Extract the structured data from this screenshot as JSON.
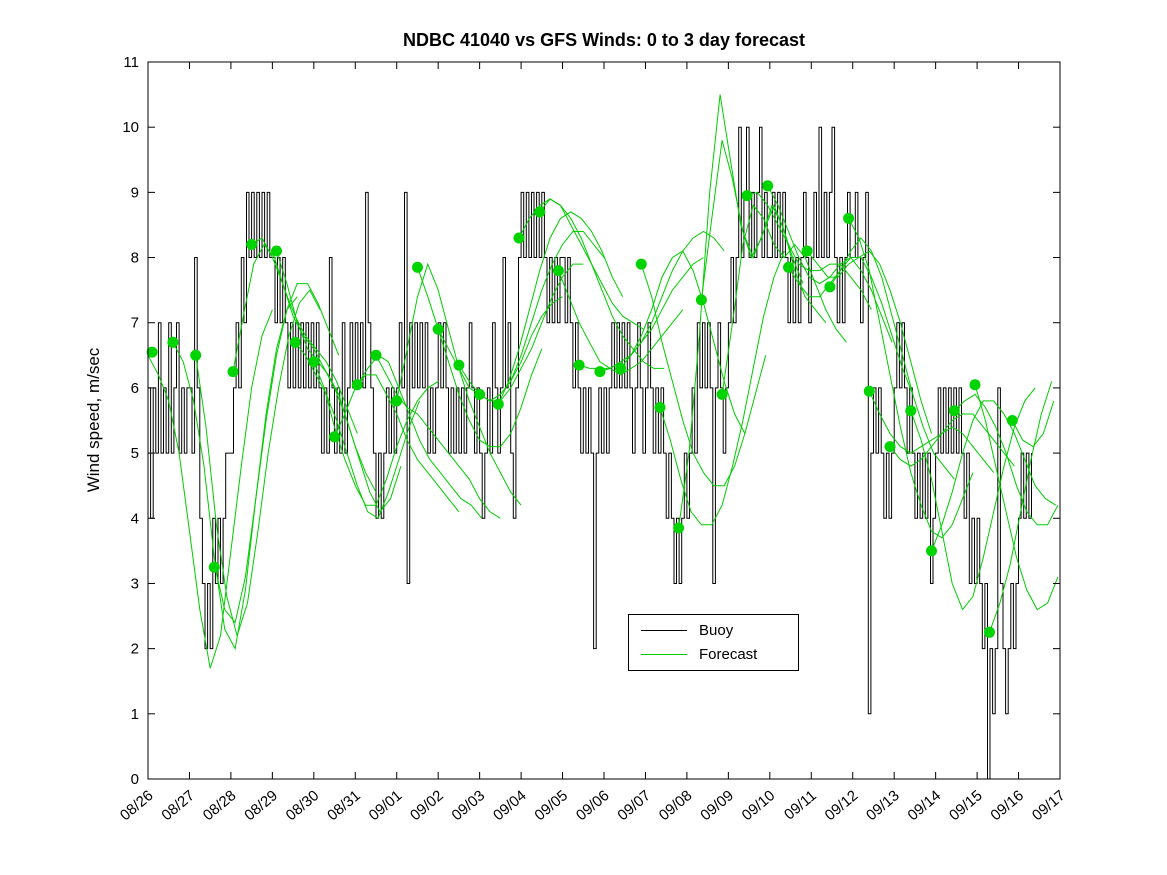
{
  "chart_data": {
    "type": "line",
    "title": "NDBC 41040 vs GFS Winds: 0 to 3 day forecast",
    "ylabel": "Wind speed, m/sec",
    "xlabel": "",
    "ylim": [
      0,
      11
    ],
    "xlim_days": [
      0,
      22
    ],
    "grid": false,
    "legend_position": "inside-bottom-center",
    "xtick_labels": [
      "08/26",
      "08/27",
      "08/28",
      "08/29",
      "08/30",
      "08/31",
      "09/01",
      "09/02",
      "09/03",
      "09/04",
      "09/05",
      "09/06",
      "09/07",
      "09/08",
      "09/09",
      "09/10",
      "09/11",
      "09/12",
      "09/13",
      "09/14",
      "09/15",
      "09/16",
      "09/17"
    ],
    "ytick_labels": [
      "0",
      "1",
      "2",
      "3",
      "4",
      "5",
      "6",
      "7",
      "8",
      "9",
      "10",
      "11"
    ],
    "buoy": {
      "name": "Buoy",
      "t0": 0,
      "dt_days": 0.0625,
      "values": [
        6,
        4,
        6,
        5,
        7,
        5,
        6,
        5,
        7,
        5,
        6,
        7,
        5,
        6,
        5,
        6,
        6,
        5,
        8,
        6,
        4,
        3,
        2,
        3,
        2,
        4,
        3,
        4,
        3,
        4,
        5,
        5,
        5,
        6,
        7,
        6,
        8,
        7,
        9,
        8,
        9,
        8,
        9,
        8,
        9,
        8,
        9,
        8,
        8,
        7,
        8,
        7,
        8,
        7,
        6,
        7,
        6,
        7,
        6,
        7,
        6,
        7,
        6,
        7,
        6,
        7,
        6,
        5,
        6,
        5,
        8,
        6,
        5,
        6,
        5,
        7,
        5,
        6,
        7,
        6,
        7,
        6,
        7,
        6,
        9,
        7,
        6,
        5,
        4,
        5,
        4,
        5,
        6,
        5,
        6,
        5,
        6,
        7,
        6,
        9,
        3,
        7,
        6,
        7,
        6,
        7,
        6,
        7,
        5,
        6,
        5,
        6,
        7,
        6,
        7,
        6,
        5,
        6,
        5,
        6,
        5,
        6,
        5,
        6,
        7,
        6,
        5,
        6,
        5,
        4,
        5,
        6,
        5,
        7,
        6,
        5,
        6,
        8,
        6,
        7,
        5,
        4,
        6,
        8,
        9,
        8,
        9,
        8,
        9,
        8,
        9,
        8,
        9,
        8,
        7,
        8,
        7,
        8,
        7,
        8,
        8,
        7,
        8,
        7,
        6,
        7,
        6,
        5,
        6,
        5,
        6,
        5,
        2,
        5,
        6,
        5,
        6,
        5,
        6,
        7,
        6,
        7,
        6,
        7,
        6,
        7,
        6,
        5,
        6,
        7,
        6,
        5,
        6,
        7,
        6,
        5,
        6,
        5,
        6,
        5,
        4,
        5,
        4,
        3,
        4,
        3,
        4,
        5,
        4,
        5,
        6,
        5,
        7,
        6,
        7,
        6,
        7,
        6,
        3,
        6,
        7,
        6,
        5,
        6,
        7,
        8,
        7,
        8,
        10,
        8,
        9,
        10,
        8,
        9,
        8,
        9,
        10,
        8,
        9,
        8,
        8,
        9,
        8,
        9,
        8,
        9,
        8,
        7,
        8,
        7,
        8,
        7,
        8,
        9,
        8,
        7,
        8,
        9,
        8,
        10,
        8,
        9,
        8,
        9,
        10,
        8,
        7,
        8,
        7,
        8,
        9,
        8,
        8,
        9,
        8,
        7,
        8,
        9,
        1,
        5,
        6,
        5,
        6,
        5,
        4,
        5,
        4,
        5,
        6,
        7,
        6,
        7,
        6,
        5,
        6,
        5,
        4,
        5,
        4,
        5,
        4,
        5,
        3,
        4,
        5,
        6,
        5,
        6,
        5,
        6,
        5,
        6,
        5,
        6,
        5,
        4,
        5,
        3,
        4,
        3,
        4,
        3,
        2,
        3,
        0,
        2,
        1,
        2,
        6,
        3,
        2,
        1,
        2,
        3,
        2,
        3,
        4,
        5,
        4,
        5,
        4,
        5
      ]
    },
    "forecast": {
      "name": "Forecast",
      "dt_days": 0.25,
      "lines": [
        {
          "t0": 0.0,
          "v": [
            6.5,
            6.2,
            5.8,
            5.0,
            3.8,
            2.6,
            1.7,
            2.2,
            3.5,
            4.8,
            6.0,
            6.8,
            7.2
          ]
        },
        {
          "t0": 0.6,
          "v": [
            6.7,
            6.4,
            5.8,
            4.8,
            3.4,
            2.3,
            2.0,
            2.9,
            4.3,
            5.6,
            6.6,
            7.2,
            7.4
          ]
        },
        {
          "t0": 1.15,
          "v": [
            6.5,
            5.4,
            3.9,
            2.8,
            2.2,
            2.7,
            3.8,
            5.0,
            6.0,
            6.8,
            7.3,
            7.5,
            7.2
          ]
        },
        {
          "t0": 1.6,
          "v": [
            3.3,
            2.6,
            2.4,
            3.1,
            4.3,
            5.5,
            6.5,
            7.2,
            7.6,
            7.6,
            7.3,
            6.9,
            6.5
          ]
        },
        {
          "t0": 2.05,
          "v": [
            6.25,
            7.1,
            7.9,
            8.2,
            8.0,
            7.5,
            7.1,
            6.8,
            6.6,
            6.4,
            6.1,
            5.7,
            5.3
          ]
        },
        {
          "t0": 2.5,
          "v": [
            8.2,
            8.3,
            8.0,
            7.6,
            7.1,
            6.8,
            6.6,
            6.3,
            6.0,
            5.6,
            5.1,
            4.7,
            4.4
          ]
        },
        {
          "t0": 3.1,
          "v": [
            8.1,
            7.6,
            7.0,
            6.6,
            6.4,
            6.2,
            5.9,
            5.4,
            4.9,
            4.4,
            4.1,
            4.3,
            4.8
          ]
        },
        {
          "t0": 3.55,
          "v": [
            6.7,
            6.5,
            6.2,
            5.9,
            5.5,
            5.0,
            4.5,
            4.1,
            4.0,
            4.4,
            4.9,
            5.4,
            5.8
          ]
        },
        {
          "t0": 4.0,
          "v": [
            6.4,
            6.0,
            5.4,
            4.9,
            4.5,
            4.2,
            4.2,
            4.6,
            5.1,
            5.5,
            5.8,
            6.0,
            6.1
          ]
        },
        {
          "t0": 4.5,
          "v": [
            5.25,
            5.6,
            6.0,
            6.2,
            6.2,
            5.9,
            5.6,
            5.2,
            4.9,
            4.7,
            4.5,
            4.3,
            4.1
          ]
        },
        {
          "t0": 5.05,
          "v": [
            6.05,
            6.3,
            6.5,
            6.4,
            6.0,
            5.6,
            5.2,
            4.9,
            4.7,
            4.5,
            4.3,
            4.2,
            4.0
          ]
        },
        {
          "t0": 5.5,
          "v": [
            6.5,
            6.2,
            5.9,
            5.7,
            5.6,
            5.4,
            5.2,
            5.0,
            4.8,
            4.6,
            4.3,
            4.1,
            4.0
          ]
        },
        {
          "t0": 6.0,
          "v": [
            5.8,
            6.6,
            7.4,
            7.9,
            7.5,
            6.9,
            6.3,
            5.8,
            5.4,
            5.0,
            4.7,
            4.4,
            4.2
          ]
        },
        {
          "t0": 6.5,
          "v": [
            7.85,
            7.4,
            6.9,
            6.4,
            5.9,
            5.5,
            5.2,
            5.1,
            5.1,
            5.3,
            5.7,
            6.2,
            6.6
          ]
        },
        {
          "t0": 7.0,
          "v": [
            6.9,
            6.6,
            6.3,
            6.0,
            5.9,
            5.8,
            5.9,
            6.1,
            6.4,
            6.8,
            7.1,
            7.3,
            7.4
          ]
        },
        {
          "t0": 7.5,
          "v": [
            6.35,
            6.1,
            5.9,
            5.8,
            5.8,
            6.0,
            6.3,
            6.6,
            7.0,
            7.4,
            7.7,
            7.9,
            7.9
          ]
        },
        {
          "t0": 8.0,
          "v": [
            5.9,
            5.8,
            5.9,
            6.1,
            6.5,
            7.0,
            7.5,
            7.9,
            8.2,
            8.4,
            8.4,
            8.2,
            8.0
          ]
        },
        {
          "t0": 8.45,
          "v": [
            5.75,
            6.1,
            6.6,
            7.2,
            7.8,
            8.3,
            8.6,
            8.7,
            8.6,
            8.4,
            8.1,
            7.7,
            7.4
          ]
        },
        {
          "t0": 8.95,
          "v": [
            8.3,
            8.6,
            8.8,
            8.9,
            8.8,
            8.5,
            8.2,
            7.9,
            7.6,
            7.3,
            7.1,
            7.0,
            6.9
          ]
        },
        {
          "t0": 9.45,
          "v": [
            8.7,
            8.9,
            8.8,
            8.6,
            8.3,
            7.9,
            7.5,
            7.1,
            6.8,
            6.6,
            6.4,
            6.3,
            6.3
          ]
        },
        {
          "t0": 9.9,
          "v": [
            7.8,
            7.4,
            7.0,
            6.7,
            6.4,
            6.3,
            6.2,
            6.3,
            6.4,
            6.6,
            6.8,
            7.0,
            7.2
          ]
        },
        {
          "t0": 10.4,
          "v": [
            6.35,
            6.3,
            6.3,
            6.3,
            6.4,
            6.5,
            6.7,
            6.9,
            7.2,
            7.5,
            7.7,
            7.9,
            8.0
          ]
        },
        {
          "t0": 10.9,
          "v": [
            6.25,
            6.3,
            6.4,
            6.5,
            6.7,
            7.0,
            7.4,
            7.8,
            8.1,
            8.3,
            8.4,
            8.3,
            8.1
          ]
        },
        {
          "t0": 11.4,
          "v": [
            6.3,
            6.5,
            6.8,
            7.2,
            7.7,
            8.0,
            8.1,
            7.8,
            7.3,
            6.7,
            6.1,
            5.6,
            5.3
          ]
        },
        {
          "t0": 11.9,
          "v": [
            7.9,
            7.4,
            6.7,
            6.1,
            5.5,
            5.0,
            4.7,
            4.5,
            4.5,
            4.8,
            5.3,
            5.9,
            6.5
          ]
        },
        {
          "t0": 12.35,
          "v": [
            5.7,
            5.2,
            4.6,
            4.1,
            3.9,
            3.9,
            4.2,
            4.8,
            5.5,
            6.3,
            7.1,
            7.7,
            8.1
          ]
        },
        {
          "t0": 12.8,
          "v": [
            3.85,
            5.0,
            6.8,
            9.0,
            10.5,
            9.5,
            8.5,
            8.0,
            8.3,
            8.8,
            8.5,
            8.0,
            7.6
          ]
        },
        {
          "t0": 13.35,
          "v": [
            7.35,
            8.6,
            9.8,
            9.2,
            8.4,
            8.0,
            8.4,
            8.8,
            8.4,
            7.8,
            7.4,
            7.2,
            7.0
          ]
        },
        {
          "t0": 13.85,
          "v": [
            5.9,
            7.0,
            8.2,
            8.8,
            8.6,
            8.2,
            8.0,
            8.2,
            8.0,
            7.6,
            7.2,
            6.9,
            6.7
          ]
        },
        {
          "t0": 14.45,
          "v": [
            8.95,
            9.0,
            8.8,
            8.5,
            8.2,
            7.9,
            7.8,
            7.8,
            7.9,
            7.9,
            7.7,
            7.5,
            7.2
          ]
        },
        {
          "t0": 14.95,
          "v": [
            9.1,
            8.8,
            8.4,
            8.0,
            7.7,
            7.6,
            7.7,
            7.9,
            8.0,
            7.8,
            7.5,
            7.1,
            6.7
          ]
        },
        {
          "t0": 15.45,
          "v": [
            7.85,
            7.6,
            7.4,
            7.4,
            7.6,
            7.8,
            8.0,
            8.0,
            7.7,
            7.3,
            6.8,
            6.3,
            5.9
          ]
        },
        {
          "t0": 15.9,
          "v": [
            8.1,
            7.9,
            7.7,
            7.7,
            7.9,
            8.0,
            8.1,
            7.9,
            7.5,
            7.0,
            6.4,
            5.8,
            5.3
          ]
        },
        {
          "t0": 16.45,
          "v": [
            7.55,
            7.8,
            8.1,
            8.3,
            8.1,
            7.7,
            7.1,
            6.5,
            5.9,
            5.4,
            5.0,
            4.8,
            4.6
          ]
        },
        {
          "t0": 16.9,
          "v": [
            8.6,
            8.3,
            7.8,
            7.0,
            6.2,
            5.4,
            4.7,
            4.2,
            3.8,
            3.7,
            3.9,
            4.3,
            4.7
          ]
        },
        {
          "t0": 17.4,
          "v": [
            5.95,
            5.6,
            5.3,
            5.1,
            5.0,
            5.1,
            5.2,
            5.3,
            5.4,
            5.3,
            5.1,
            4.9,
            4.7
          ]
        },
        {
          "t0": 17.9,
          "v": [
            5.1,
            4.9,
            4.8,
            4.9,
            5.1,
            5.3,
            5.5,
            5.6,
            5.6,
            5.4,
            5.2,
            5.0,
            4.8
          ]
        },
        {
          "t0": 18.4,
          "v": [
            5.65,
            5.2,
            4.6,
            3.8,
            3.0,
            2.6,
            2.8,
            3.4,
            4.1,
            4.8,
            5.4,
            5.8,
            6.0
          ]
        },
        {
          "t0": 18.9,
          "v": [
            3.5,
            3.9,
            4.4,
            5.0,
            5.5,
            5.8,
            5.8,
            5.6,
            5.3,
            4.9,
            4.5,
            4.3,
            4.2
          ]
        },
        {
          "t0": 19.45,
          "v": [
            5.65,
            5.8,
            5.9,
            5.7,
            5.4,
            5.0,
            4.5,
            4.1,
            3.9,
            3.9,
            4.2,
            4.7,
            5.3
          ]
        },
        {
          "t0": 19.95,
          "v": [
            6.05,
            5.5,
            4.8,
            4.1,
            3.4,
            2.9,
            2.6,
            2.7,
            3.1,
            3.8,
            4.6,
            5.5,
            6.3
          ]
        },
        {
          "t0": 20.3,
          "v": [
            2.25,
            2.7,
            3.3,
            4.1,
            4.9,
            5.6,
            6.1,
            6.4,
            6.6
          ]
        },
        {
          "t0": 20.85,
          "v": [
            5.5,
            5.2,
            5.1,
            5.3,
            5.8,
            6.5,
            7.3,
            7.8
          ]
        }
      ],
      "markers": [
        [
          0.1,
          6.55
        ],
        [
          0.6,
          6.7
        ],
        [
          1.15,
          6.5
        ],
        [
          1.6,
          3.25
        ],
        [
          2.05,
          6.25
        ],
        [
          2.5,
          8.2
        ],
        [
          3.1,
          8.1
        ],
        [
          3.55,
          6.7
        ],
        [
          4.0,
          6.4
        ],
        [
          4.5,
          5.25
        ],
        [
          5.05,
          6.05
        ],
        [
          5.5,
          6.5
        ],
        [
          6.0,
          5.8
        ],
        [
          6.5,
          7.85
        ],
        [
          7.0,
          6.9
        ],
        [
          7.5,
          6.35
        ],
        [
          8.0,
          5.9
        ],
        [
          8.45,
          5.75
        ],
        [
          8.95,
          8.3
        ],
        [
          9.45,
          8.7
        ],
        [
          9.9,
          7.8
        ],
        [
          10.4,
          6.35
        ],
        [
          10.9,
          6.25
        ],
        [
          11.4,
          6.3
        ],
        [
          11.9,
          7.9
        ],
        [
          12.35,
          5.7
        ],
        [
          12.8,
          3.85
        ],
        [
          13.35,
          7.35
        ],
        [
          13.85,
          5.9
        ],
        [
          14.45,
          8.95
        ],
        [
          14.95,
          9.1
        ],
        [
          15.45,
          7.85
        ],
        [
          15.9,
          8.1
        ],
        [
          16.45,
          7.55
        ],
        [
          16.9,
          8.6
        ],
        [
          17.4,
          5.95
        ],
        [
          17.9,
          5.1
        ],
        [
          18.4,
          5.65
        ],
        [
          18.9,
          3.5
        ],
        [
          19.45,
          5.65
        ],
        [
          19.95,
          6.05
        ],
        [
          20.3,
          2.25
        ],
        [
          20.85,
          5.5
        ]
      ]
    },
    "colors": {
      "buoy": "#000000",
      "forecast": "#00cc00",
      "marker": "#00d400",
      "axis": "#000000",
      "background": "#ffffff"
    }
  },
  "legend": {
    "items": [
      {
        "label": "Buoy",
        "color": "#000000"
      },
      {
        "label": "Forecast",
        "color": "#00cc00"
      }
    ]
  }
}
